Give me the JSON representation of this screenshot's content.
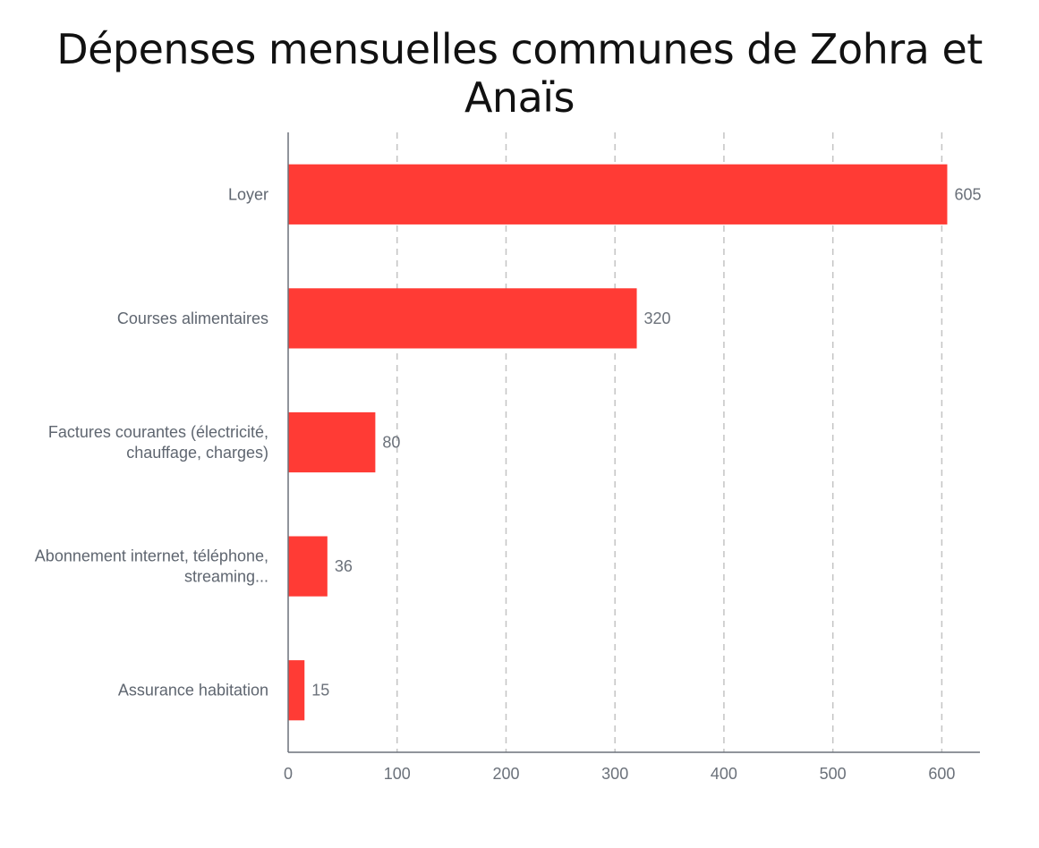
{
  "chart_data": {
    "type": "bar",
    "orientation": "horizontal",
    "title": "Dépenses mensuelles communes de Zohra et Anaïs",
    "xlabel": "",
    "ylabel": "",
    "categories": [
      [
        "Loyer"
      ],
      [
        "Courses alimentaires"
      ],
      [
        "Factures courantes (électricité,",
        "chauffage, charges)"
      ],
      [
        "Abonnement internet, téléphone,",
        "streaming..."
      ],
      [
        "Assurance habitation"
      ]
    ],
    "values": [
      605,
      320,
      80,
      36,
      15
    ],
    "value_labels": [
      "605",
      "320",
      "80",
      "36",
      "15"
    ],
    "xlim": [
      0,
      635
    ],
    "xticks": [
      0,
      100,
      200,
      300,
      400,
      500,
      600
    ],
    "grid": "vertical-dashed",
    "legend": "none",
    "colors": {
      "bar": "#ff3b35",
      "grid": "#c4c4c4",
      "axis": "#6b717a"
    }
  }
}
